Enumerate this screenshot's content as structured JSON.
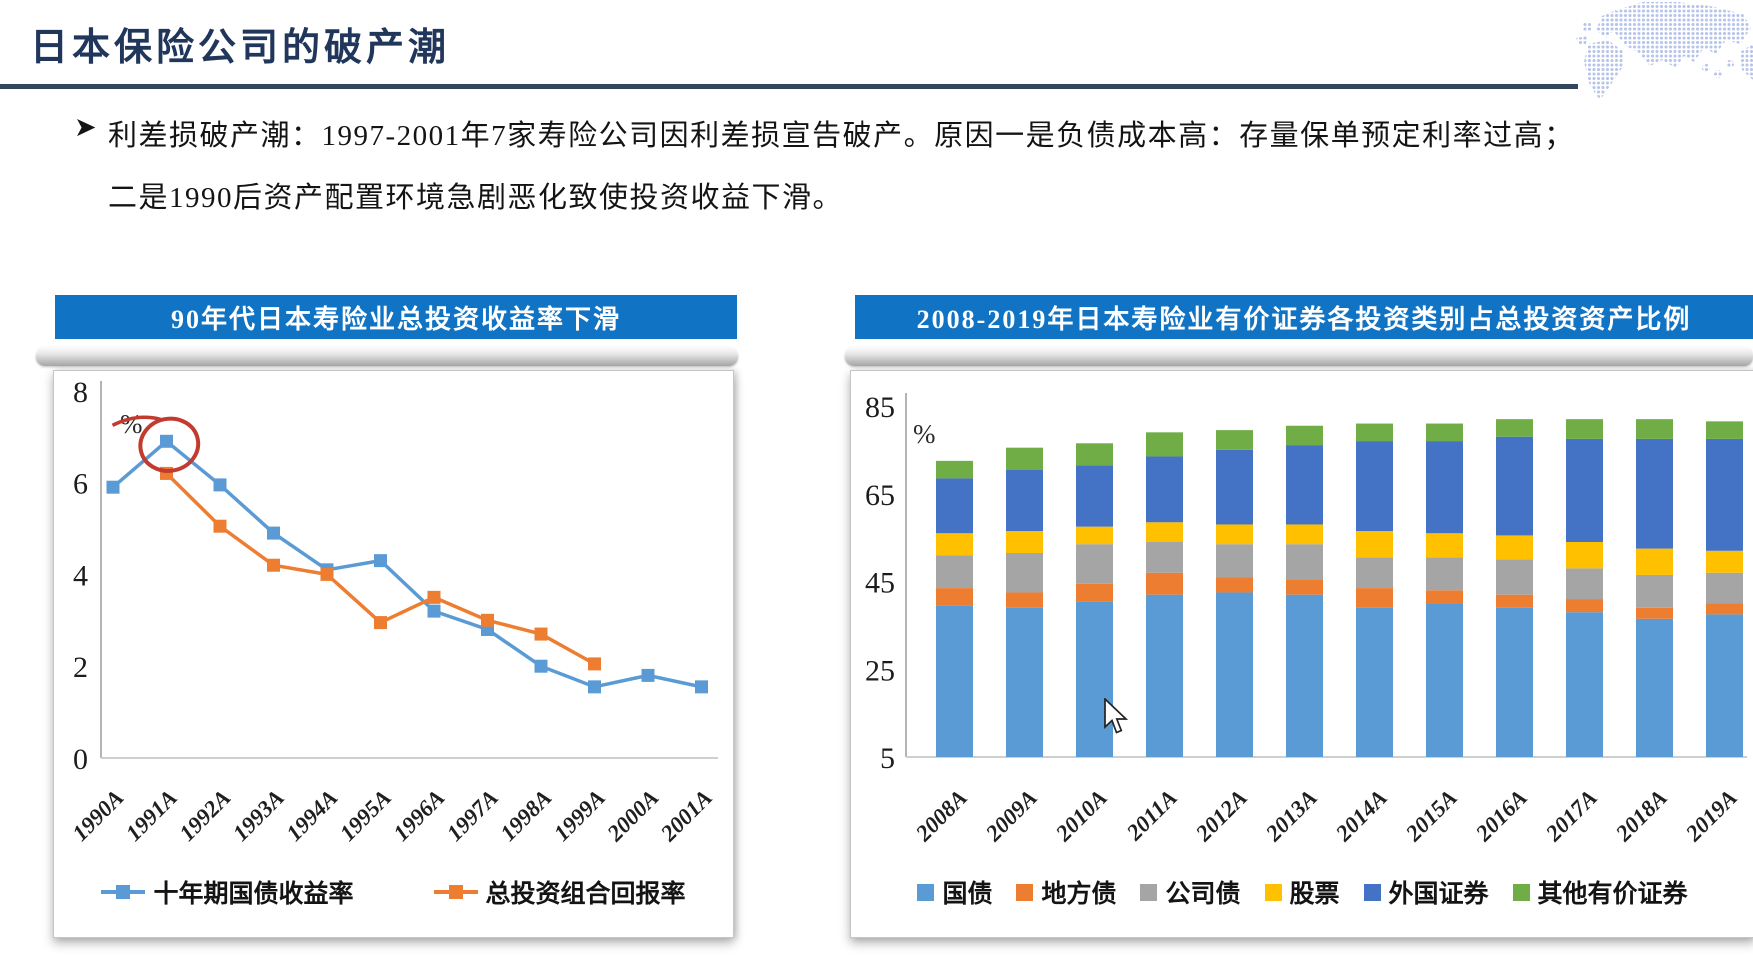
{
  "header": {
    "title": "日本保险公司的破产潮"
  },
  "colors": {
    "title_text": "#21365B",
    "rule": "#33475C",
    "banner": "#1173C3",
    "annotation_red": "#C23B2F"
  },
  "bullet": {
    "marker": "➤",
    "line1": "利差损破产潮：1997-2001年7家寿险公司因利差损宣告破产。原因一是负债成本高：存量保单预定利率过高；",
    "line2": "二是1990后资产配置环境急剧恶化致使投资收益下滑。"
  },
  "chart_data": [
    {
      "type": "line",
      "title": "90年代日本寿险业总投资收益率下滑",
      "unit_label": "%",
      "categories": [
        "1990A",
        "1991A",
        "1992A",
        "1993A",
        "1994A",
        "1995A",
        "1996A",
        "1997A",
        "1998A",
        "1999A",
        "2000A",
        "2001A"
      ],
      "yticks": [
        8,
        6,
        4,
        2,
        0
      ],
      "ylim": [
        0,
        8
      ],
      "grid": false,
      "legend_position": "bottom",
      "series": [
        {
          "name": "十年期国债收益率",
          "color": "#5B9BD5",
          "values": [
            5.9,
            6.9,
            5.95,
            4.9,
            4.1,
            4.3,
            3.2,
            2.8,
            2.0,
            1.55,
            1.8,
            1.55
          ]
        },
        {
          "name": "总投资组合回报率",
          "color": "#ED7D31",
          "values": [
            null,
            6.2,
            5.05,
            4.2,
            4.0,
            2.95,
            3.5,
            3.0,
            2.7,
            2.05,
            null,
            null
          ]
        }
      ],
      "annotation": {
        "type": "hand-drawn-circle",
        "target": "1991A peak of 十年期国债收益率",
        "color": "#C23B2F"
      }
    },
    {
      "type": "bar",
      "stacked": true,
      "title": "2008-2019年日本寿险业有价证券各投资类别占总投资资产比例",
      "unit_label": "%",
      "categories": [
        "2008A",
        "2009A",
        "2010A",
        "2011A",
        "2012A",
        "2013A",
        "2014A",
        "2015A",
        "2016A",
        "2017A",
        "2018A",
        "2019A"
      ],
      "yticks": [
        85,
        65,
        45,
        25,
        5
      ],
      "ylim": [
        5,
        85
      ],
      "grid": false,
      "legend_position": "bottom",
      "series": [
        {
          "name": "国债",
          "color": "#5B9BD5",
          "values": [
            39.5,
            39,
            40.5,
            42,
            42.5,
            42,
            39,
            40,
            39,
            38,
            36.5,
            37.5
          ]
        },
        {
          "name": "地方债",
          "color": "#ED7D31",
          "values": [
            4,
            3.5,
            4,
            5,
            3.5,
            3.5,
            4.5,
            3,
            3,
            3,
            2.5,
            2.5
          ]
        },
        {
          "name": "公司债",
          "color": "#A5A5A5",
          "values": [
            7.5,
            9,
            9,
            7,
            7.5,
            8,
            7,
            7.5,
            8,
            7,
            7.5,
            7
          ]
        },
        {
          "name": "股票",
          "color": "#FFC000",
          "values": [
            5,
            5,
            4,
            4.5,
            4.5,
            4.5,
            6,
            5.5,
            5.5,
            6,
            6,
            5
          ]
        },
        {
          "name": "外国证券",
          "color": "#4472C4",
          "values": [
            12.5,
            14,
            14,
            15,
            17,
            18,
            20.5,
            21,
            22.5,
            23.5,
            25,
            25.5
          ]
        },
        {
          "name": "其他有价证券",
          "color": "#70AD47",
          "values": [
            4,
            5,
            5,
            5.5,
            4.5,
            4.5,
            4,
            4,
            4,
            4.5,
            4.5,
            4
          ]
        }
      ]
    }
  ],
  "cursor": {
    "type": "arrow-pointer"
  }
}
